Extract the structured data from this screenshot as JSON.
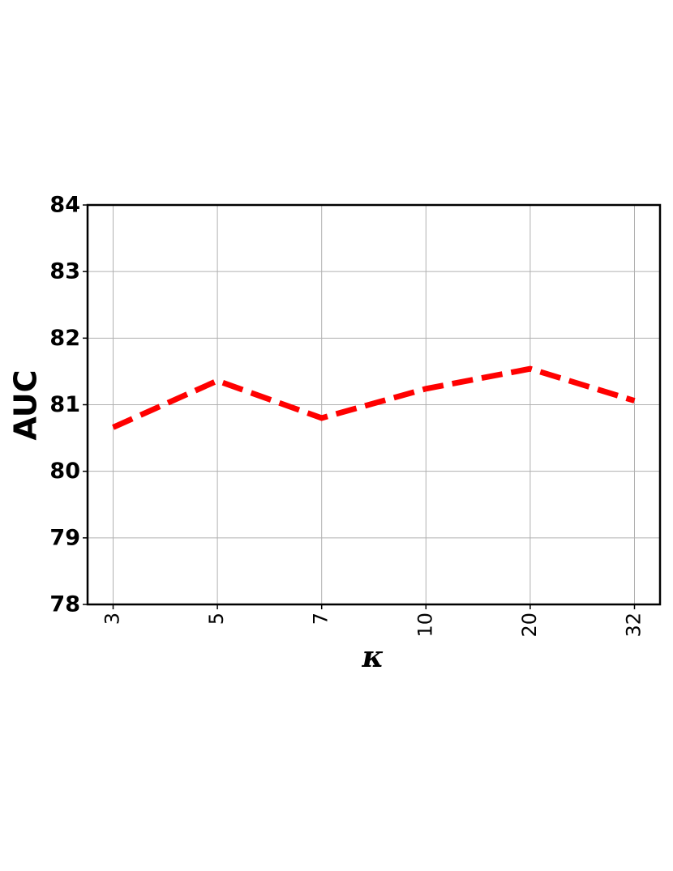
{
  "chart_data": {
    "type": "line",
    "categories": [
      "3",
      "5",
      "7",
      "10",
      "20",
      "32"
    ],
    "series": [
      {
        "name": "AUC",
        "color": "#ff0000",
        "values": [
          80.66,
          81.36,
          80.8,
          81.24,
          81.54,
          81.06
        ]
      }
    ],
    "x_label": "κ",
    "y_label": "AUC",
    "ylim": [
      78,
      84
    ],
    "yticks": [
      78,
      79,
      80,
      81,
      82,
      83,
      84
    ],
    "grid": true
  }
}
